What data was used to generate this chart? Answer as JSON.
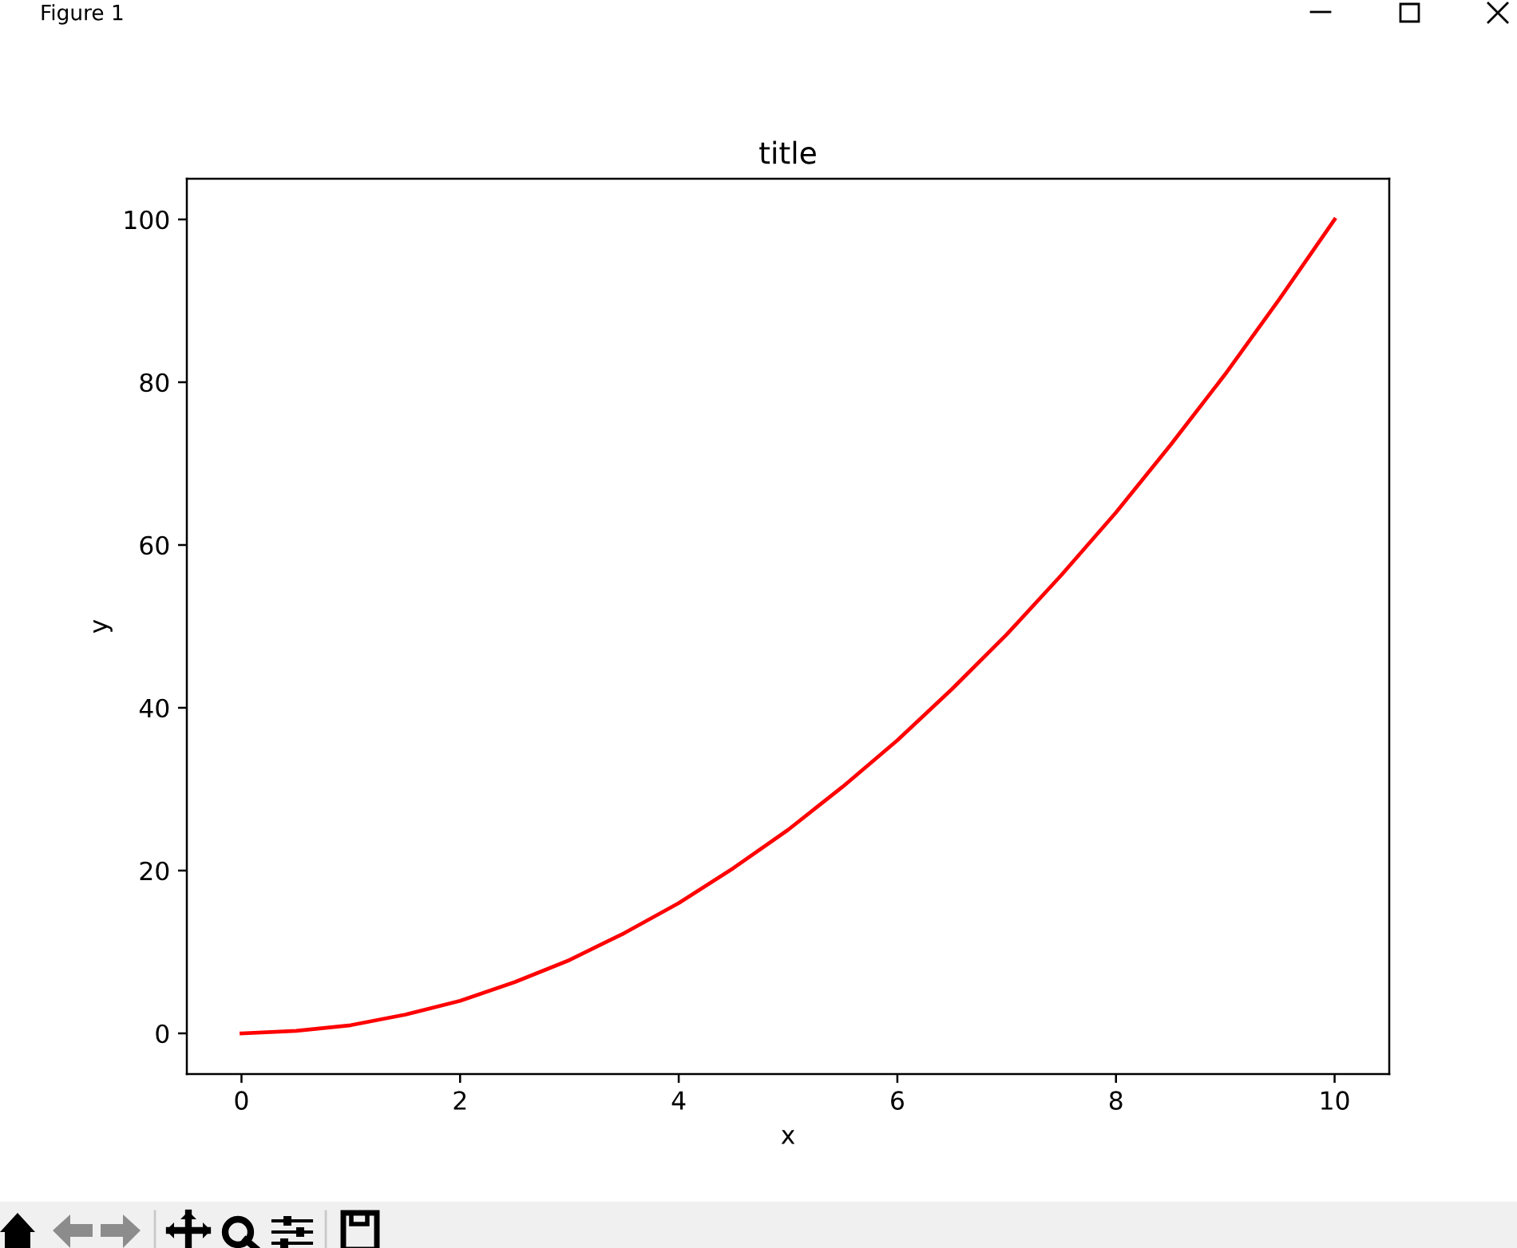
{
  "chart_data": {
    "type": "line",
    "title": "title",
    "xlabel": "x",
    "ylabel": "y",
    "annotations": [
      "Figure 1"
    ],
    "x": [
      0,
      0.5,
      1,
      1.5,
      2,
      2.5,
      3,
      3.5,
      4,
      4.5,
      5,
      5.5,
      6,
      6.5,
      7,
      7.5,
      8,
      8.5,
      9,
      9.5,
      10
    ],
    "series": [
      {
        "color": "#ff0000",
        "values": [
          0,
          0.3,
          1,
          2.3,
          4,
          6.3,
          9,
          12.3,
          16,
          20.3,
          25,
          30.3,
          36,
          42.3,
          49,
          56.3,
          64,
          72.3,
          81,
          90.3,
          100
        ]
      }
    ],
    "xlim": [
      -0.5,
      10.5
    ],
    "ylim": [
      -5,
      105
    ],
    "xticks": [
      0,
      2,
      4,
      6,
      8,
      10
    ],
    "yticks": [
      0,
      20,
      40,
      60,
      80,
      100
    ],
    "line_style": "solid"
  }
}
